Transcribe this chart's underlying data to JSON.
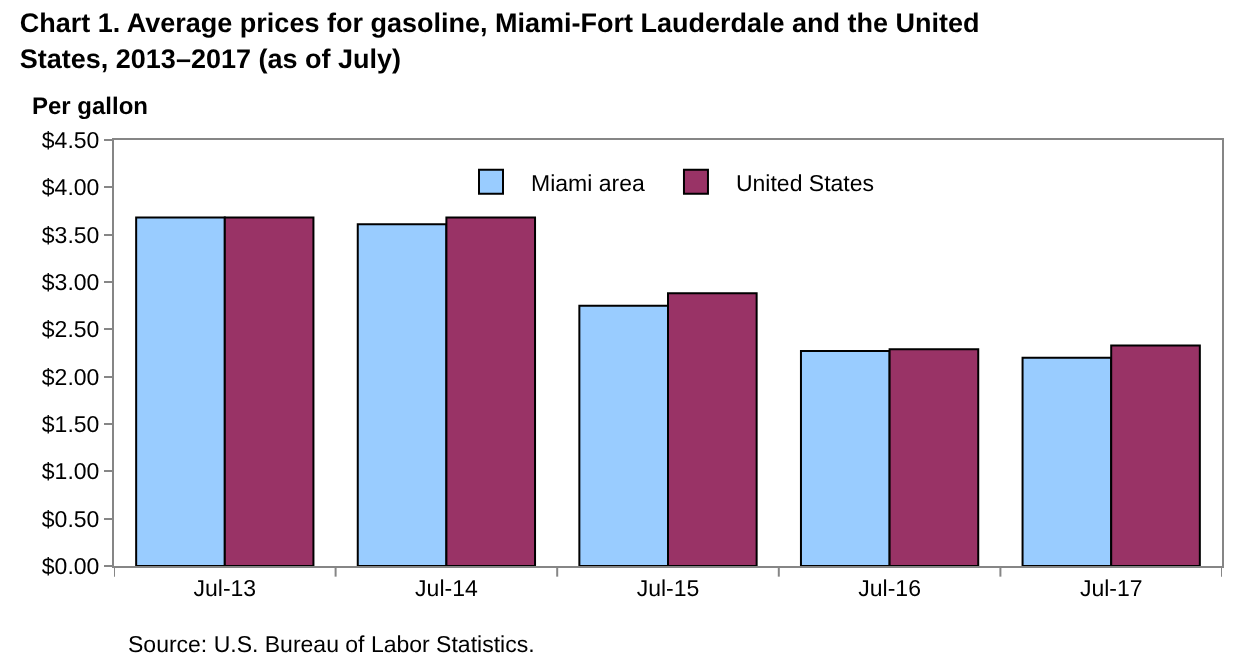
{
  "chart_data": {
    "type": "bar",
    "title": "Chart 1. Average prices for gasoline, Miami-Fort Lauderdale and the United States, 2013–2017 (as of July)",
    "ylabel": "Per gallon",
    "categories": [
      "Jul-13",
      "Jul-14",
      "Jul-15",
      "Jul-16",
      "Jul-17"
    ],
    "series": [
      {
        "name": "Miami area",
        "color": "#99ccff",
        "values": [
          3.68,
          3.61,
          2.75,
          2.27,
          2.2
        ]
      },
      {
        "name": "United States",
        "color": "#993366",
        "values": [
          3.68,
          3.68,
          2.88,
          2.29,
          2.33
        ]
      }
    ],
    "ylim": [
      0,
      4.5
    ],
    "yticks": [
      {
        "value": 0,
        "label": "$0.00"
      },
      {
        "value": 0.5,
        "label": "$0.50"
      },
      {
        "value": 1,
        "label": "$1.00"
      },
      {
        "value": 1.5,
        "label": "$1.50"
      },
      {
        "value": 2,
        "label": "$2.00"
      },
      {
        "value": 2.5,
        "label": "$2.50"
      },
      {
        "value": 3,
        "label": "$3.00"
      },
      {
        "value": 3.5,
        "label": "$3.50"
      },
      {
        "value": 4,
        "label": "$4.00"
      },
      {
        "value": 4.5,
        "label": "$4.50"
      }
    ],
    "legend": "top",
    "annotations": [
      "Source: U.S. Bureau of Labor Statistics."
    ]
  }
}
